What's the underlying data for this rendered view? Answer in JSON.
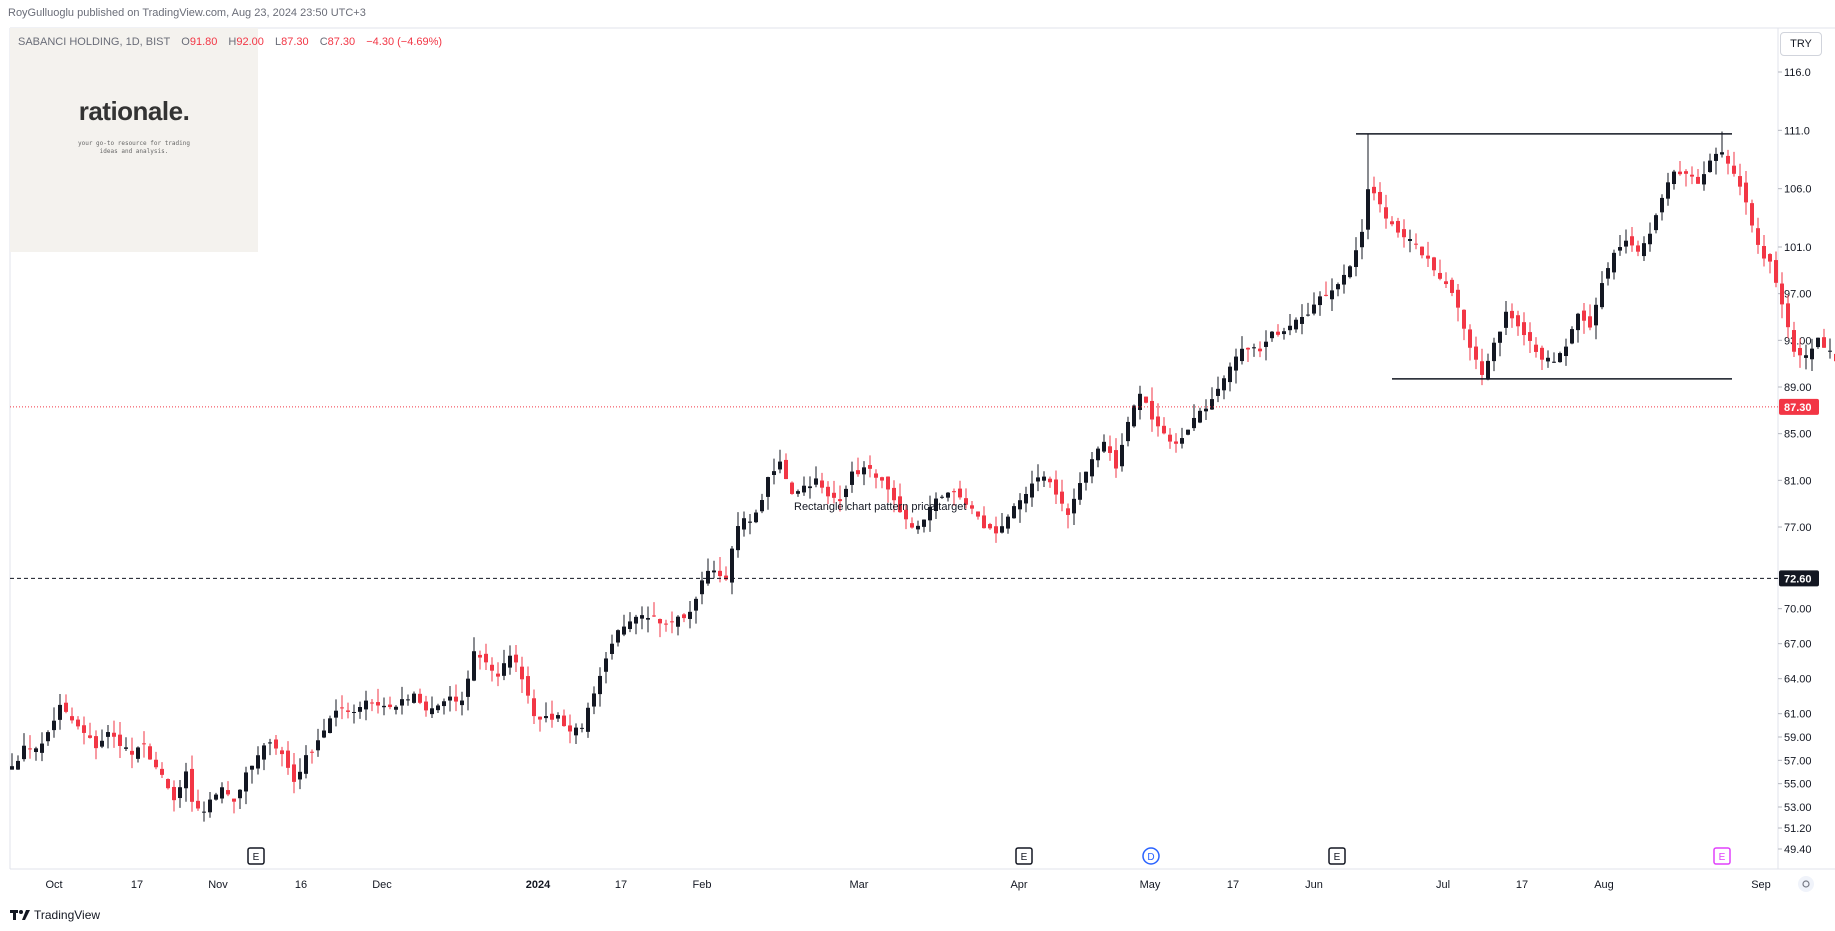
{
  "header": {
    "published_line": "RoyGulluoglu published on TradingView.com, Aug 23, 2024 23:50 UTC+3"
  },
  "legend": {
    "symbol": "SABANCI HOLDING, 1D, BIST",
    "open_label": "O",
    "open": "91.80",
    "high_label": "H",
    "high": "92.00",
    "low_label": "L",
    "low": "87.30",
    "close_label": "C",
    "close": "87.30",
    "change": "−4.30 (−4.69%)"
  },
  "logo": {
    "name": "rationale.",
    "tagline": "your go-to resource for trading ideas and analysis."
  },
  "currency_button": "TRY",
  "annotation": {
    "text": "Rectangle chart pattern price target"
  },
  "footer": {
    "brand": "TradingView"
  },
  "colors": {
    "up": "#131722",
    "down": "#f23645",
    "last_price_badge": "#f23645",
    "target_badge": "#131722",
    "event_dividend": "#2962ff",
    "event_upcoming": "#e040fb"
  },
  "chart_data": {
    "type": "candlestick",
    "title": "SABANCI HOLDING, 1D, BIST",
    "ylabel": "TRY",
    "ylim": [
      47.5,
      118
    ],
    "price_ticks": [
      "116.0",
      "111.0",
      "106.0",
      "101.0",
      "97.00",
      "93.00",
      "89.00",
      "85.00",
      "81.00",
      "77.00",
      "70.00",
      "67.00",
      "64.00",
      "61.00",
      "59.00",
      "57.00",
      "55.00",
      "53.00",
      "51.20",
      "49.40"
    ],
    "x_ticks": [
      {
        "label": "Oct",
        "bold": false
      },
      {
        "label": "17",
        "bold": false
      },
      {
        "label": "Nov",
        "bold": false
      },
      {
        "label": "16",
        "bold": false
      },
      {
        "label": "Dec",
        "bold": false
      },
      {
        "label": "2024",
        "bold": true
      },
      {
        "label": "17",
        "bold": false
      },
      {
        "label": "Feb",
        "bold": false
      },
      {
        "label": "Mar",
        "bold": false
      },
      {
        "label": "Apr",
        "bold": false
      },
      {
        "label": "May",
        "bold": false
      },
      {
        "label": "17",
        "bold": false
      },
      {
        "label": "Jun",
        "bold": false
      },
      {
        "label": "Jul",
        "bold": false
      },
      {
        "label": "17",
        "bold": false
      },
      {
        "label": "Aug",
        "bold": false
      },
      {
        "label": "Sep",
        "bold": false
      }
    ],
    "last_price": "87.30",
    "target_price": "72.60",
    "rectangle_top": 110.7,
    "rectangle_bottom": 89.7,
    "events": [
      {
        "label": "E",
        "kind": "earnings",
        "x_anchor": "Nov"
      },
      {
        "label": "E",
        "kind": "earnings",
        "x_anchor": "Apr"
      },
      {
        "label": "D",
        "kind": "dividend",
        "x_anchor": "May"
      },
      {
        "label": "E",
        "kind": "earnings",
        "x_anchor": "Jun"
      },
      {
        "label": "E",
        "kind": "upcoming",
        "x_anchor": "Aug"
      }
    ],
    "anchors": [
      [
        0,
        56.5
      ],
      [
        2,
        58
      ],
      [
        5,
        58.3
      ],
      [
        7,
        60.5
      ],
      [
        8,
        61.6
      ],
      [
        11,
        59.8
      ],
      [
        14,
        58.2
      ],
      [
        16,
        59.3
      ],
      [
        18,
        58.5
      ],
      [
        20,
        57.5
      ],
      [
        22,
        58.2
      ],
      [
        25,
        55.5
      ],
      [
        27,
        53.5
      ],
      [
        29,
        55.8
      ],
      [
        30,
        53.2
      ],
      [
        32,
        52.7
      ],
      [
        35,
        54.9
      ],
      [
        37,
        53.5
      ],
      [
        39,
        55.7
      ],
      [
        41,
        57.3
      ],
      [
        43,
        58.8
      ],
      [
        45,
        57.5
      ],
      [
        47,
        55.2
      ],
      [
        49,
        57.2
      ],
      [
        51,
        58.8
      ],
      [
        53,
        60.5
      ],
      [
        55,
        61.5
      ],
      [
        57,
        61.2
      ],
      [
        59,
        62.2
      ],
      [
        61,
        61.8
      ],
      [
        63,
        61.5
      ],
      [
        65,
        62.0
      ],
      [
        67,
        62.5
      ],
      [
        69,
        61.2
      ],
      [
        71,
        61.7
      ],
      [
        73,
        62.2
      ],
      [
        75,
        62.0
      ],
      [
        77,
        66.3
      ],
      [
        79,
        65.5
      ],
      [
        81,
        64.0
      ],
      [
        83,
        66.2
      ],
      [
        85,
        64.2
      ],
      [
        87,
        61.0
      ],
      [
        89,
        60.5
      ],
      [
        91,
        60.8
      ],
      [
        93,
        59.5
      ],
      [
        95,
        60.0
      ],
      [
        97,
        62.5
      ],
      [
        99,
        65.5
      ],
      [
        101,
        68.0
      ],
      [
        103,
        69.2
      ],
      [
        105,
        69.7
      ],
      [
        107,
        69.3
      ],
      [
        109,
        68.5
      ],
      [
        111,
        69.2
      ],
      [
        113,
        69.5
      ],
      [
        115,
        72.5
      ],
      [
        117,
        73.5
      ],
      [
        118,
        72.8
      ],
      [
        119,
        72.8
      ],
      [
        121,
        77.0
      ],
      [
        122,
        77.5
      ],
      [
        124,
        78.0
      ],
      [
        126,
        81.0
      ],
      [
        128,
        82.5
      ],
      [
        130,
        80.0
      ],
      [
        132,
        80.5
      ],
      [
        134,
        81.0
      ],
      [
        136,
        79.5
      ],
      [
        138,
        79.5
      ],
      [
        140,
        81.5
      ],
      [
        142,
        82.0
      ],
      [
        144,
        81.5
      ],
      [
        146,
        80.0
      ],
      [
        148,
        78.0
      ],
      [
        150,
        77.0
      ],
      [
        152,
        77.5
      ],
      [
        154,
        79.5
      ],
      [
        156,
        80.0
      ],
      [
        158,
        79.5
      ],
      [
        160,
        78.5
      ],
      [
        162,
        77.0
      ],
      [
        164,
        76.5
      ],
      [
        166,
        78.0
      ],
      [
        168,
        79.0
      ],
      [
        170,
        80.5
      ],
      [
        172,
        81.5
      ],
      [
        174,
        80.0
      ],
      [
        176,
        78.0
      ],
      [
        178,
        80.5
      ],
      [
        180,
        83.0
      ],
      [
        182,
        84.5
      ],
      [
        184,
        82.0
      ],
      [
        186,
        86.0
      ],
      [
        188,
        88.5
      ],
      [
        190,
        86.5
      ],
      [
        192,
        85.0
      ],
      [
        194,
        84.0
      ],
      [
        196,
        85.5
      ],
      [
        198,
        87.0
      ],
      [
        200,
        87.8
      ],
      [
        202,
        89.5
      ],
      [
        204,
        91.5
      ],
      [
        206,
        92.5
      ],
      [
        208,
        92.0
      ],
      [
        210,
        93.5
      ],
      [
        212,
        94.0
      ],
      [
        214,
        95.0
      ],
      [
        216,
        95.5
      ],
      [
        218,
        96.5
      ],
      [
        220,
        97.5
      ],
      [
        222,
        98.5
      ],
      [
        223,
        99.5
      ],
      [
        225,
        102.0
      ],
      [
        226,
        106.0
      ],
      [
        227,
        105.5
      ],
      [
        229,
        103.5
      ],
      [
        231,
        102.5
      ],
      [
        233,
        101.5
      ],
      [
        235,
        100.5
      ],
      [
        237,
        99.0
      ],
      [
        239,
        98.0
      ],
      [
        241,
        96.0
      ],
      [
        243,
        92.5
      ],
      [
        245,
        90.0
      ],
      [
        247,
        92.5
      ],
      [
        249,
        95.5
      ],
      [
        251,
        94.5
      ],
      [
        253,
        93.0
      ],
      [
        255,
        91.5
      ],
      [
        257,
        91.0
      ],
      [
        259,
        92.5
      ],
      [
        261,
        95.0
      ],
      [
        263,
        94.0
      ],
      [
        265,
        98.0
      ],
      [
        267,
        100.5
      ],
      [
        269,
        101.5
      ],
      [
        271,
        100.5
      ],
      [
        273,
        102.0
      ],
      [
        275,
        105.0
      ],
      [
        277,
        107.5
      ],
      [
        279,
        107.0
      ],
      [
        281,
        106.5
      ],
      [
        283,
        108.5
      ],
      [
        285,
        109.0
      ],
      [
        287,
        107.0
      ],
      [
        289,
        105.0
      ],
      [
        291,
        101.0
      ],
      [
        293,
        99.5
      ],
      [
        295,
        96.0
      ],
      [
        297,
        92.0
      ],
      [
        299,
        91.5
      ],
      [
        301,
        93.0
      ],
      [
        303,
        92.0
      ],
      [
        305,
        90.5
      ],
      [
        307,
        92.5
      ],
      [
        309,
        92.0
      ],
      [
        311,
        92.5
      ],
      [
        313,
        92.3
      ],
      [
        315,
        91.8
      ],
      [
        316,
        87.3
      ]
    ]
  }
}
